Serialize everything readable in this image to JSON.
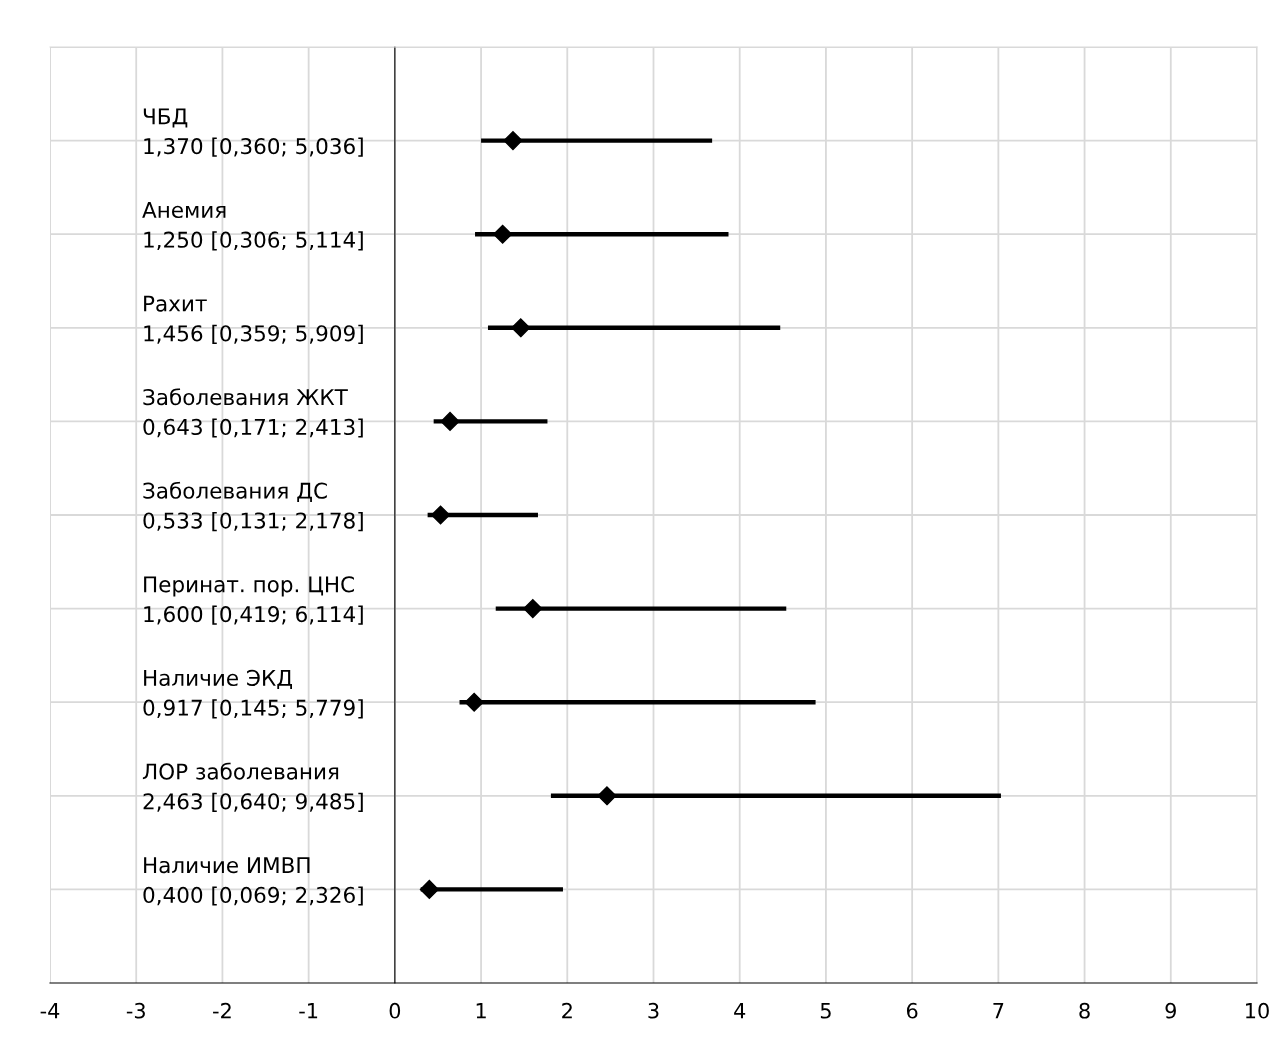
{
  "chart_data": {
    "type": "scatter",
    "orientation": "horizontal",
    "categories": [
      "ЧБД\n1,370 [0,360; 5,036]",
      "Анемия\n1,250 [0,306; 5,114]",
      "Рахит\n1,456 [0,359; 5,909]",
      "Заболевания ЖКТ\n0,643 [0,171; 2,413]",
      "Заболевания ДС\n0,533 [0,131; 2,178]",
      "Перинат. пор. ЦНС\n1,600 [0,419; 6,114]",
      "Наличие ЭКД\n0,917 [0,145; 5,779]",
      "ЛОР заболевания\n2,463 [0,640; 9,485]",
      "Наличие ИМВП\n0,400 [0,069; 2,326]"
    ],
    "values": [
      1.37,
      1.25,
      1.46,
      0.64,
      0.53,
      1.6,
      0.92,
      2.46,
      0.4
    ],
    "errors": [
      [
        1.0,
        3.68
      ],
      [
        0.93,
        3.87
      ],
      [
        1.08,
        4.47
      ],
      [
        0.45,
        1.77
      ],
      [
        0.38,
        1.66
      ],
      [
        1.17,
        4.54
      ],
      [
        0.75,
        4.88
      ],
      [
        1.81,
        7.03
      ],
      [
        0.3,
        1.95
      ]
    ],
    "color": "#000000",
    "marker": "diamond",
    "xlim": [
      -4,
      10
    ],
    "xticks": [
      -4,
      -3,
      -2,
      -1,
      0,
      1,
      2,
      3,
      4,
      5,
      6,
      7,
      8,
      9,
      10
    ],
    "grid": true,
    "tick_labels": "x"
  }
}
